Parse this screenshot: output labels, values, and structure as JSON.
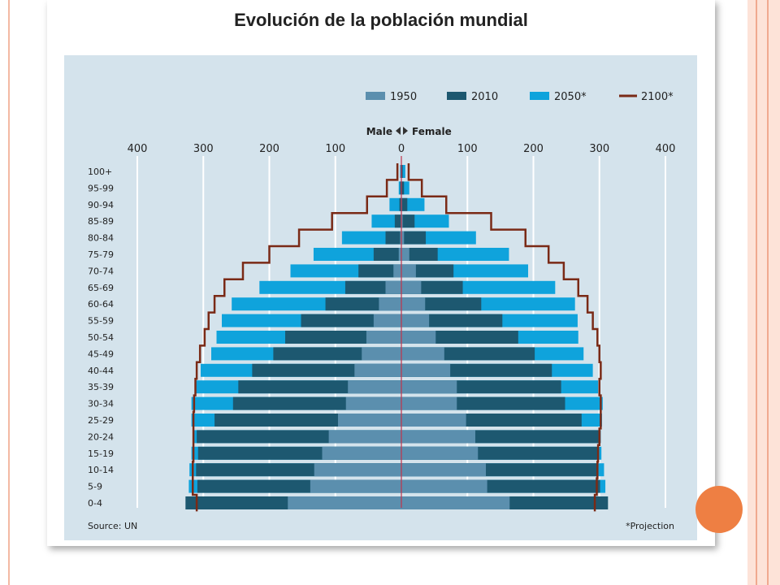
{
  "slide": {
    "title": "Evolución de la población mundial",
    "accent_color": "#ee7f43"
  },
  "chart_data": {
    "type": "bar",
    "orientation": "horizontal-pyramid",
    "left_label": "Male",
    "right_label": "Female",
    "x_ticks": [
      400,
      300,
      200,
      100,
      0,
      100,
      200,
      300,
      400
    ],
    "xlim": [
      -400,
      400
    ],
    "categories": [
      "100+",
      "95-99",
      "90-94",
      "85-89",
      "80-84",
      "75-79",
      "70-74",
      "65-69",
      "60-64",
      "55-59",
      "50-54",
      "45-49",
      "40-44",
      "35-39",
      "30-34",
      "25-29",
      "20-24",
      "15-19",
      "10-14",
      "5-9",
      "0-4"
    ],
    "series": [
      {
        "name": "1950",
        "color": "#5b8fae",
        "male": [
          0,
          0,
          0,
          1,
          2,
          4,
          12,
          24,
          34,
          42,
          53,
          60,
          71,
          81,
          84,
          96,
          110,
          120,
          132,
          138,
          172
        ],
        "female": [
          0,
          0,
          1,
          2,
          4,
          12,
          22,
          30,
          36,
          42,
          52,
          65,
          74,
          84,
          84,
          98,
          112,
          116,
          128,
          130,
          164
        ]
      },
      {
        "name": "2010",
        "color": "#1d5870",
        "male": [
          1,
          2,
          3,
          10,
          24,
          42,
          65,
          85,
          115,
          152,
          176,
          194,
          226,
          247,
          255,
          283,
          310,
          308,
          311,
          309,
          327
        ],
        "female": [
          2,
          4,
          9,
          20,
          37,
          55,
          79,
          93,
          121,
          153,
          177,
          202,
          228,
          242,
          248,
          273,
          302,
          299,
          297,
          301,
          313
        ]
      },
      {
        "name": "2050*",
        "color": "#0fa3dc",
        "male": [
          2,
          4,
          18,
          45,
          90,
          133,
          168,
          215,
          257,
          272,
          280,
          288,
          304,
          312,
          318,
          318,
          315,
          318,
          321,
          322,
          317
        ],
        "female": [
          6,
          12,
          35,
          72,
          113,
          163,
          192,
          233,
          263,
          267,
          268,
          276,
          290,
          298,
          305,
          304,
          300,
          303,
          307,
          309,
          310
        ]
      }
    ],
    "line_series": {
      "name": "2100*",
      "color": "#7a2a16",
      "male": [
        6,
        22,
        52,
        105,
        155,
        200,
        240,
        268,
        283,
        292,
        298,
        305,
        310,
        312,
        314,
        315,
        315,
        315,
        316,
        316,
        310
      ],
      "female": [
        11,
        31,
        68,
        136,
        188,
        223,
        246,
        268,
        282,
        290,
        297,
        300,
        302,
        300,
        302,
        302,
        300,
        298,
        297,
        296,
        293
      ]
    },
    "source": "Source: UN",
    "note": "*Projection",
    "grid": true,
    "legend_position": "top-right"
  }
}
